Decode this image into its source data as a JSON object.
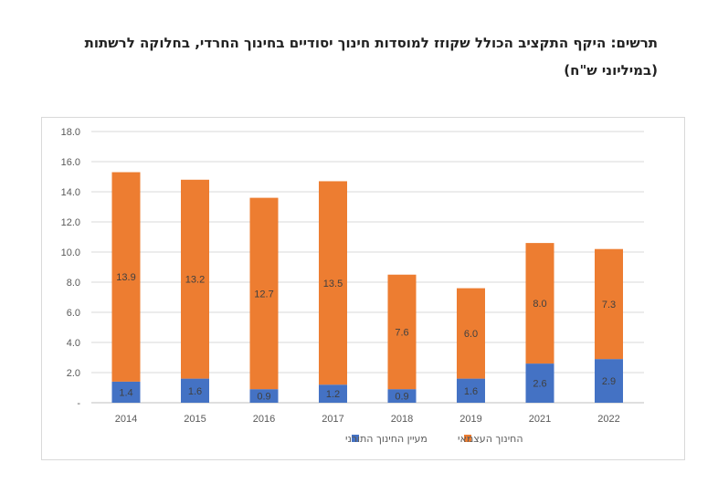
{
  "caption": {
    "line1": "תרשים: היקף התקציב הכולל שקוזז למוסדות חינוך יסודיים בחינוך החרדי, בחלוקה לרשתות",
    "line2": "(במיליוני ש\"ח)"
  },
  "chart_data": {
    "type": "bar",
    "stacked": true,
    "categories": [
      "2014",
      "2015",
      "2016",
      "2017",
      "2018",
      "2019",
      "2021",
      "2022"
    ],
    "series": [
      {
        "name": "מעיין החינוך התורני",
        "color": "#4472C4",
        "values": [
          1.4,
          1.6,
          0.9,
          1.2,
          0.9,
          1.6,
          2.6,
          2.9
        ]
      },
      {
        "name": "החינוך העצמאי",
        "color": "#ED7D31",
        "values": [
          13.9,
          13.2,
          12.7,
          13.5,
          7.6,
          6.0,
          8.0,
          7.3
        ]
      }
    ],
    "y_ticks": [
      "-",
      "2.0",
      "4.0",
      "6.0",
      "8.0",
      "10.0",
      "12.0",
      "14.0",
      "16.0",
      "18.0"
    ],
    "ylim": [
      0,
      18
    ],
    "grid": true,
    "legend_position": "bottom"
  }
}
